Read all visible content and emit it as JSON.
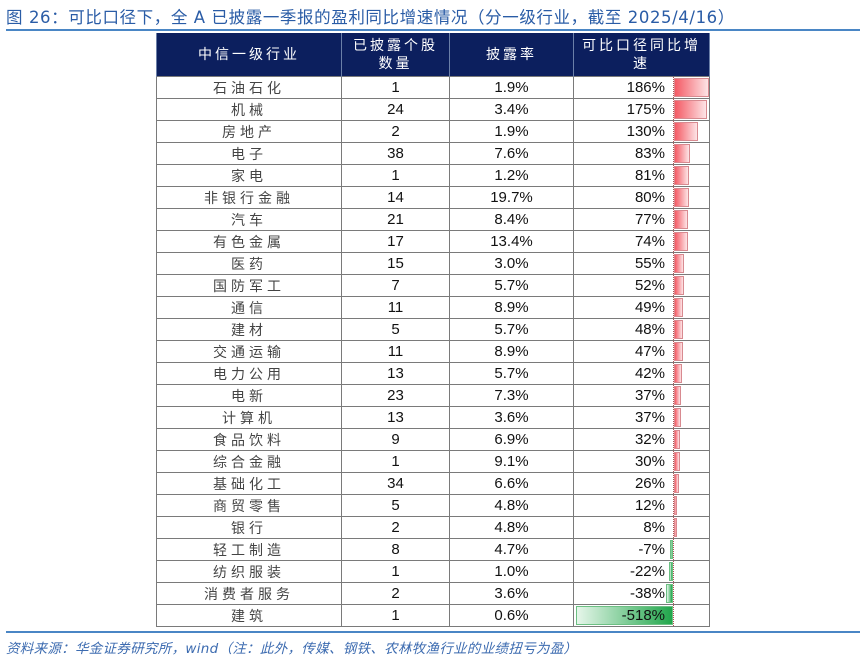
{
  "title": "图 26：可比口径下，全 A 已披露一季报的盈利同比增速情况（分一级行业，截至 2025/4/16）",
  "source": "资料来源：华金证券研究所，wind（注：此外，传媒、钢铁、农林牧渔行业的业绩扭亏为盈）",
  "colors": {
    "title": "#2a5ca6",
    "header_bg": "#0c1f5e",
    "positive_bar": "#f45a64",
    "negative_bar": "#21a64b",
    "rule": "#4a86c5"
  },
  "table": {
    "headers": [
      "中信一级行业",
      "已披露个股数量",
      "披露率",
      "可比口径同比增速"
    ],
    "header_lines": {
      "col1": [
        "中信一级行业"
      ],
      "col2": [
        "已披露个股",
        "数量"
      ],
      "col3": [
        "披露率"
      ],
      "col4": [
        "可比口径同比增",
        "速"
      ]
    },
    "rows": [
      {
        "industry": "石油石化",
        "count": "1",
        "rate": "1.9%",
        "growth": "186%",
        "growth_value": 186
      },
      {
        "industry": "机械",
        "count": "24",
        "rate": "3.4%",
        "growth": "175%",
        "growth_value": 175
      },
      {
        "industry": "房地产",
        "count": "2",
        "rate": "1.9%",
        "growth": "130%",
        "growth_value": 130
      },
      {
        "industry": "电子",
        "count": "38",
        "rate": "7.6%",
        "growth": "83%",
        "growth_value": 83
      },
      {
        "industry": "家电",
        "count": "1",
        "rate": "1.2%",
        "growth": "81%",
        "growth_value": 81
      },
      {
        "industry": "非银行金融",
        "count": "14",
        "rate": "19.7%",
        "growth": "80%",
        "growth_value": 80
      },
      {
        "industry": "汽车",
        "count": "21",
        "rate": "8.4%",
        "growth": "77%",
        "growth_value": 77
      },
      {
        "industry": "有色金属",
        "count": "17",
        "rate": "13.4%",
        "growth": "74%",
        "growth_value": 74
      },
      {
        "industry": "医药",
        "count": "15",
        "rate": "3.0%",
        "growth": "55%",
        "growth_value": 55
      },
      {
        "industry": "国防军工",
        "count": "7",
        "rate": "5.7%",
        "growth": "52%",
        "growth_value": 52
      },
      {
        "industry": "通信",
        "count": "11",
        "rate": "8.9%",
        "growth": "49%",
        "growth_value": 49
      },
      {
        "industry": "建材",
        "count": "5",
        "rate": "5.7%",
        "growth": "48%",
        "growth_value": 48
      },
      {
        "industry": "交通运输",
        "count": "11",
        "rate": "8.9%",
        "growth": "47%",
        "growth_value": 47
      },
      {
        "industry": "电力公用",
        "count": "13",
        "rate": "5.7%",
        "growth": "42%",
        "growth_value": 42
      },
      {
        "industry": "电新",
        "count": "23",
        "rate": "7.3%",
        "growth": "37%",
        "growth_value": 37
      },
      {
        "industry": "计算机",
        "count": "13",
        "rate": "3.6%",
        "growth": "37%",
        "growth_value": 37
      },
      {
        "industry": "食品饮料",
        "count": "9",
        "rate": "6.9%",
        "growth": "32%",
        "growth_value": 32
      },
      {
        "industry": "综合金融",
        "count": "1",
        "rate": "9.1%",
        "growth": "30%",
        "growth_value": 30
      },
      {
        "industry": "基础化工",
        "count": "34",
        "rate": "6.6%",
        "growth": "26%",
        "growth_value": 26
      },
      {
        "industry": "商贸零售",
        "count": "5",
        "rate": "4.8%",
        "growth": "12%",
        "growth_value": 12
      },
      {
        "industry": "银行",
        "count": "2",
        "rate": "4.8%",
        "growth": "8%",
        "growth_value": 8
      },
      {
        "industry": "轻工制造",
        "count": "8",
        "rate": "4.7%",
        "growth": "-7%",
        "growth_value": -7
      },
      {
        "industry": "纺织服装",
        "count": "1",
        "rate": "1.0%",
        "growth": "-22%",
        "growth_value": -22
      },
      {
        "industry": "消费者服务",
        "count": "2",
        "rate": "3.6%",
        "growth": "-38%",
        "growth_value": -38
      },
      {
        "industry": "建筑",
        "count": "1",
        "rate": "0.6%",
        "growth": "-518%",
        "growth_value": -518
      }
    ]
  }
}
